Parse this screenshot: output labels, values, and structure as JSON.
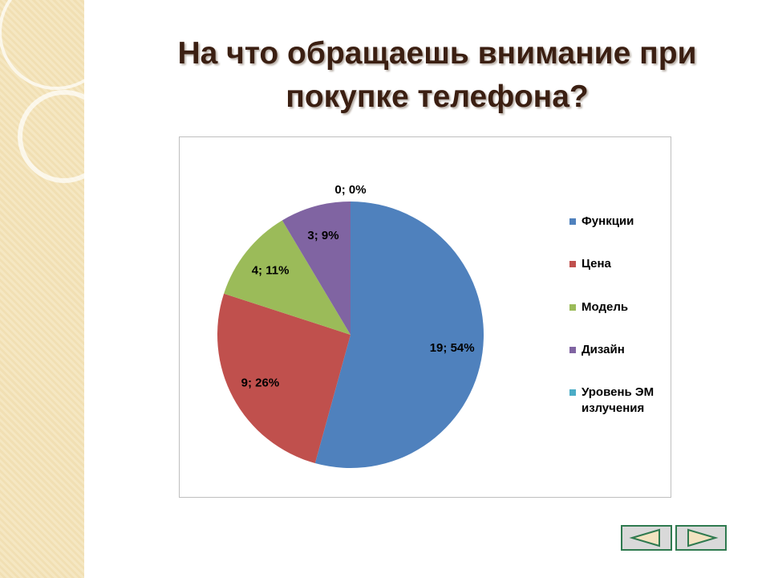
{
  "chart_data": {
    "type": "pie",
    "title": "На что обращаешь внимание при покупке телефона?",
    "categories": [
      "Функции",
      "Цена",
      "Модель",
      "Дизайн",
      "Уровень ЭМ излучения"
    ],
    "values": [
      19,
      9,
      4,
      3,
      0
    ],
    "value_labels": [
      "19; 54%",
      "9; 26%",
      "4; 11%",
      "3; 9%",
      "0; 0%"
    ],
    "colors": [
      "#4f81bd",
      "#c0504d",
      "#9bbb59",
      "#8064a2",
      "#4bacc6"
    ],
    "legend": "right"
  }
}
